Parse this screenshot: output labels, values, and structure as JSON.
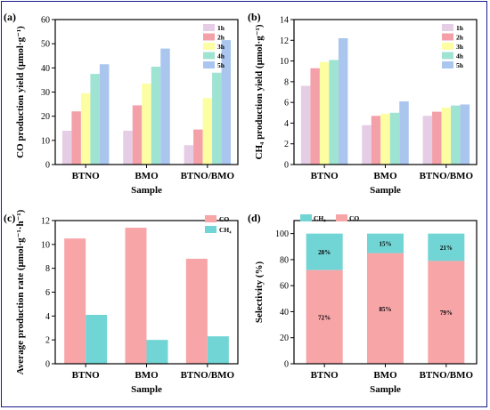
{
  "chart_data": [
    {
      "panel": "(a)",
      "type": "bar",
      "categories": [
        "BTNO",
        "BMO",
        "BTNO/BMO"
      ],
      "series": [
        {
          "name": "1h",
          "values": [
            14,
            14,
            8
          ]
        },
        {
          "name": "2h",
          "values": [
            22,
            24.5,
            14.5
          ]
        },
        {
          "name": "3h",
          "values": [
            29.5,
            33.5,
            27.5
          ]
        },
        {
          "name": "4h",
          "values": [
            37.5,
            40.5,
            38
          ]
        },
        {
          "name": "5h",
          "values": [
            41.5,
            48,
            51.5
          ]
        }
      ],
      "colors": [
        "#e6cde6",
        "#f4a0a8",
        "#fdfda2",
        "#9fe3d2",
        "#aac6ef"
      ],
      "xlabel": "Sample",
      "ylabel": "CO production yield (μmol·g⁻¹)",
      "ylim": [
        0,
        60
      ],
      "yticks": [
        0,
        10,
        20,
        30,
        40,
        50,
        60
      ],
      "legend_position": "top-right"
    },
    {
      "panel": "(b)",
      "type": "bar",
      "categories": [
        "BTNO",
        "BMO",
        "BTNO/BMO"
      ],
      "series": [
        {
          "name": "1h",
          "values": [
            7.6,
            3.8,
            4.7
          ]
        },
        {
          "name": "2h",
          "values": [
            9.3,
            4.7,
            5.1
          ]
        },
        {
          "name": "3h",
          "values": [
            9.9,
            4.9,
            5.5
          ]
        },
        {
          "name": "4h",
          "values": [
            10.1,
            5.0,
            5.7
          ]
        },
        {
          "name": "5h",
          "values": [
            12.2,
            6.1,
            5.8
          ]
        }
      ],
      "colors": [
        "#e6cde6",
        "#f4a0a8",
        "#fdfda2",
        "#9fe3d2",
        "#aac6ef"
      ],
      "xlabel": "Sample",
      "ylabel": "CH₄ production yield (μmol·g⁻¹)",
      "ylim": [
        0,
        14
      ],
      "yticks": [
        0,
        2,
        4,
        6,
        8,
        10,
        12,
        14
      ],
      "legend_position": "top-right"
    },
    {
      "panel": "(c)",
      "type": "bar",
      "categories": [
        "BTNO",
        "BMO",
        "BTNO/BMO"
      ],
      "series": [
        {
          "name": "CO",
          "values": [
            10.5,
            11.4,
            8.8
          ]
        },
        {
          "name": "CH₄",
          "values": [
            4.1,
            2.0,
            2.3
          ]
        }
      ],
      "colors": [
        "#f8a5a8",
        "#72d5d5"
      ],
      "xlabel": "Sample",
      "ylabel": "Average production rate (μmol·g⁻¹·h⁻¹)",
      "ylim": [
        0,
        12
      ],
      "yticks": [
        0,
        2,
        4,
        6,
        8,
        10,
        12
      ],
      "legend_position": "top-right"
    },
    {
      "panel": "(d)",
      "type": "bar",
      "stacked": true,
      "categories": [
        "BTNO",
        "BMO",
        "BTNO/BMO"
      ],
      "series": [
        {
          "name": "CO",
          "values": [
            72,
            85,
            79
          ],
          "labels": [
            "72%",
            "85%",
            "79%"
          ]
        },
        {
          "name": "CH₄",
          "values": [
            28,
            15,
            21
          ],
          "labels": [
            "28%",
            "15%",
            "21%"
          ]
        }
      ],
      "colors": [
        "#f8a5a8",
        "#72d5d5"
      ],
      "xlabel": "Sample",
      "ylabel": "Selectivity (%)",
      "ylim": [
        0,
        110
      ],
      "yticks": [
        0,
        20,
        40,
        60,
        80,
        100
      ],
      "legend_position": "top-left"
    }
  ]
}
